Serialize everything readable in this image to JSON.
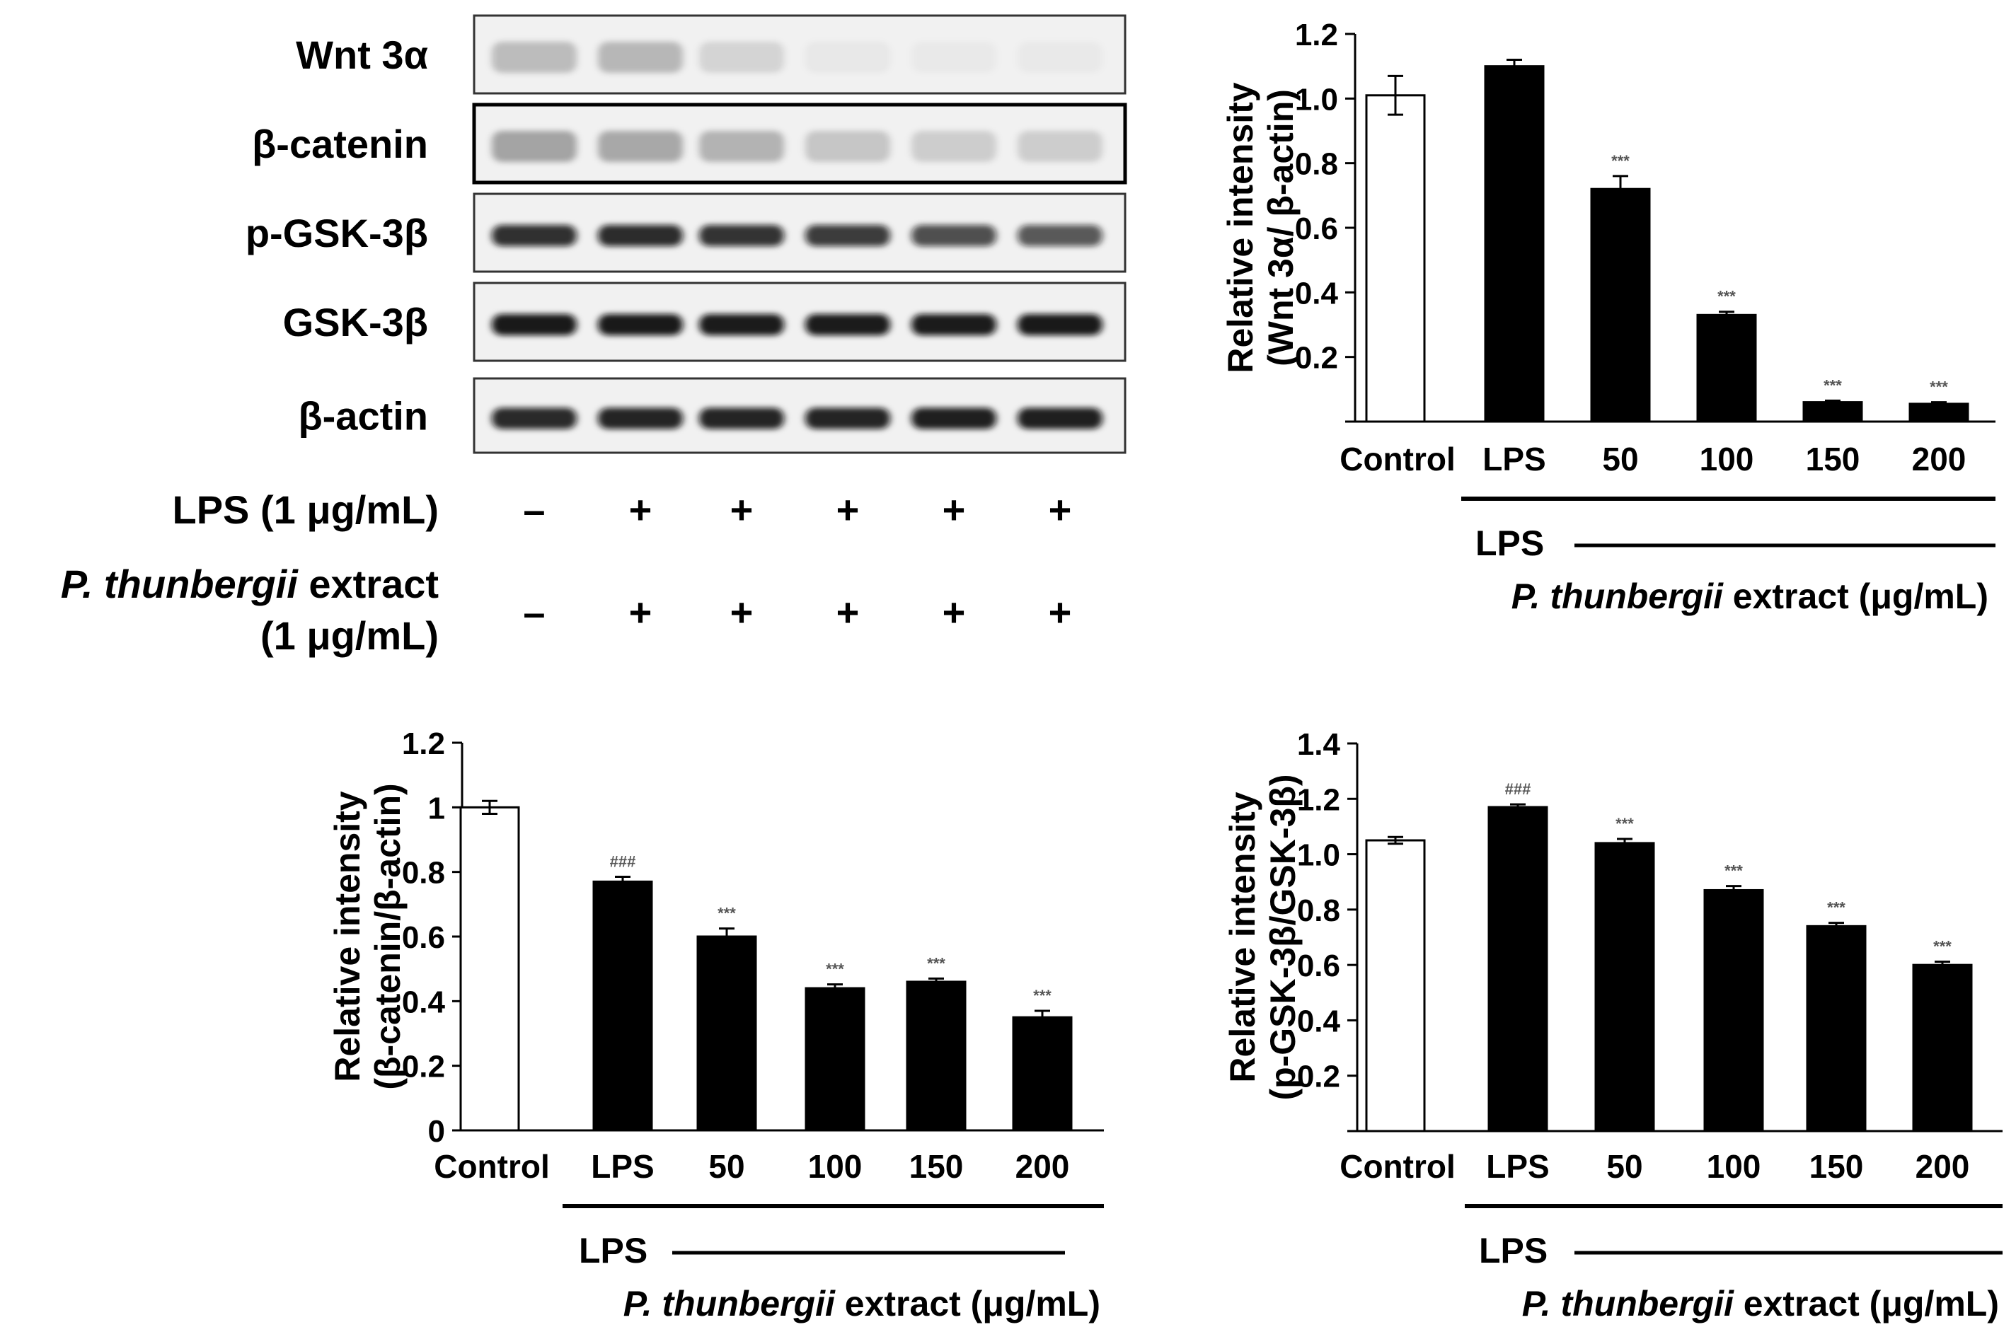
{
  "blot": {
    "bands": [
      "Wnt 3α",
      "β-catenin",
      "p-GSK-3β",
      "GSK-3β",
      "β-actin"
    ],
    "intensities": [
      [
        0.22,
        0.24,
        0.12,
        0.04,
        0.03,
        0.03
      ],
      [
        0.32,
        0.3,
        0.26,
        0.18,
        0.15,
        0.15
      ],
      [
        0.85,
        0.87,
        0.84,
        0.8,
        0.72,
        0.68
      ],
      [
        0.95,
        0.95,
        0.94,
        0.94,
        0.94,
        0.95
      ],
      [
        0.88,
        0.9,
        0.9,
        0.9,
        0.92,
        0.92
      ]
    ],
    "treatments": [
      {
        "label": "LPS (1 μg/mL)",
        "signs": [
          "–",
          "+",
          "+",
          "+",
          "+",
          "+"
        ]
      },
      {
        "label_italic": "P. thunbergii",
        "label_rest": " extract",
        "label_line2": "(1 μg/mL)",
        "signs": [
          "–",
          "+",
          "+",
          "+",
          "+",
          "+"
        ]
      }
    ]
  },
  "chart_data": [
    {
      "type": "bar",
      "title": "",
      "categories": [
        "Control",
        "LPS",
        "50",
        "100",
        "150",
        "200"
      ],
      "values": [
        1.01,
        1.1,
        0.72,
        0.33,
        0.06,
        0.055
      ],
      "errors": [
        0.06,
        0.02,
        0.04,
        0.01,
        0.005,
        0.005
      ],
      "annotations": [
        "",
        "",
        "***",
        "***",
        "***",
        "***"
      ],
      "ylabel_line1": "Relative intensity",
      "ylabel_line2": "(Wnt 3α/ β-actin)",
      "ylim": [
        0,
        1.2
      ],
      "yticks": [
        "0.2",
        "0.4",
        "0.6",
        "0.8",
        "1.0",
        "1.2"
      ],
      "group_label": "LPS",
      "xlabel_italic": "P. thunbergii",
      "xlabel_rest": " extract (μg/mL)",
      "fills": [
        "#ffffff",
        "#000000",
        "#000000",
        "#000000",
        "#000000",
        "#000000"
      ]
    },
    {
      "type": "bar",
      "title": "",
      "categories": [
        "Control",
        "LPS",
        "50",
        "100",
        "150",
        "200"
      ],
      "values": [
        1.0,
        0.77,
        0.6,
        0.44,
        0.46,
        0.35
      ],
      "errors": [
        0.02,
        0.015,
        0.025,
        0.012,
        0.01,
        0.02
      ],
      "annotations": [
        "",
        "###",
        "***",
        "***",
        "***",
        "***"
      ],
      "ylabel_line1": "Relative intensity",
      "ylabel_line2": "(β-catenin/β-actin)",
      "ylim": [
        0,
        1.2
      ],
      "yticks": [
        "0",
        "0.2",
        "0.4",
        "0.6",
        "0.8",
        "1",
        "1.2"
      ],
      "group_label": "LPS",
      "xlabel_italic": "P. thunbergii",
      "xlabel_rest": " extract (μg/mL)",
      "fills": [
        "#ffffff",
        "#000000",
        "#000000",
        "#000000",
        "#000000",
        "#000000"
      ]
    },
    {
      "type": "bar",
      "title": "",
      "categories": [
        "Control",
        "LPS",
        "50",
        "100",
        "150",
        "200"
      ],
      "values": [
        1.05,
        1.17,
        1.04,
        0.87,
        0.74,
        0.6
      ],
      "errors": [
        0.012,
        0.01,
        0.015,
        0.015,
        0.012,
        0.012
      ],
      "annotations": [
        "",
        "###",
        "***",
        "***",
        "***",
        "***"
      ],
      "ylabel_line1": "Relative intensity",
      "ylabel_line2": "(p-GSK-3β/GSK-3β)",
      "ylim": [
        0,
        1.4
      ],
      "yticks": [
        "0.2",
        "0.4",
        "0.6",
        "0.8",
        "1.0",
        "1.2",
        "1.4"
      ],
      "group_label": "LPS",
      "xlabel_italic": "P. thunbergii",
      "xlabel_rest": " extract (μg/mL)",
      "fills": [
        "#ffffff",
        "#000000",
        "#000000",
        "#000000",
        "#000000",
        "#000000"
      ]
    }
  ],
  "colors": {
    "annotation_gray": "#555555",
    "blot_bg": "#f1f1f1",
    "band": "#111111"
  }
}
